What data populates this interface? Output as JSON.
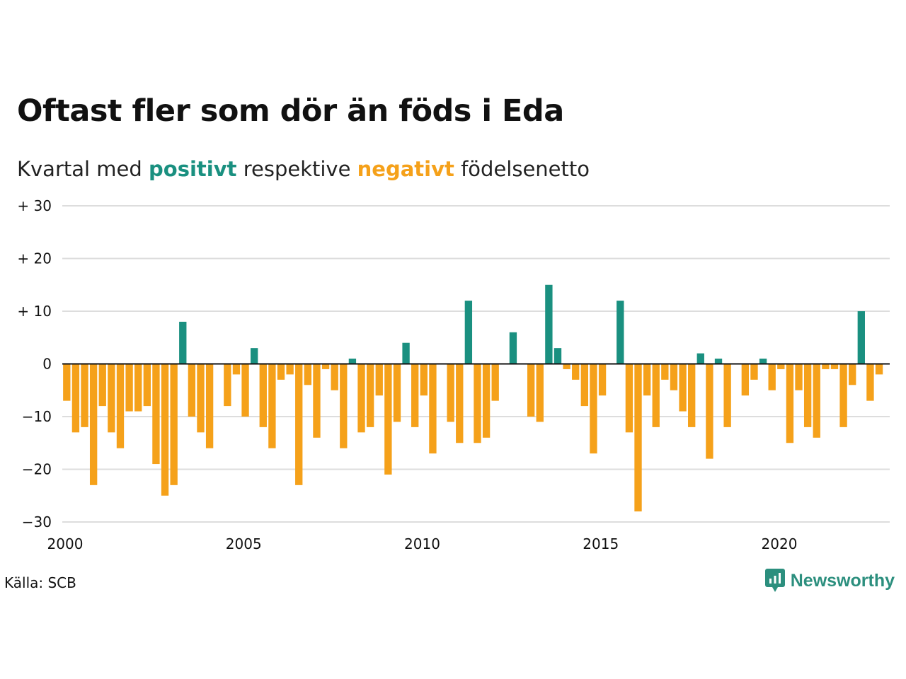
{
  "chart_data": {
    "type": "bar",
    "title": "Oftast fler som dör än föds i Eda",
    "subtitle": {
      "prefix": "Kvartal med ",
      "positive_word": "positivt",
      "middle": " respektive ",
      "negative_word": "negativt",
      "suffix": " födelsenetto"
    },
    "x_start": 2000,
    "x_end": 2023,
    "x_ticks": [
      {
        "year": 2000,
        "label": "2000"
      },
      {
        "year": 2005,
        "label": "2005"
      },
      {
        "year": 2010,
        "label": "2010"
      },
      {
        "year": 2015,
        "label": "2015"
      },
      {
        "year": 2020,
        "label": "2020"
      }
    ],
    "y_ticks": [
      {
        "value": 30,
        "label": "+ 30"
      },
      {
        "value": 20,
        "label": "+ 20"
      },
      {
        "value": 10,
        "label": "+ 10"
      },
      {
        "value": 0,
        "label": "0"
      },
      {
        "value": -10,
        "label": "−10"
      },
      {
        "value": -20,
        "label": "−20"
      },
      {
        "value": -30,
        "label": "−30"
      }
    ],
    "ylim": [
      -30,
      30
    ],
    "grid": true,
    "colors": {
      "positive": "#1a9080",
      "negative": "#f5a11a",
      "grid": "#dddddd",
      "zero_line": "#111111"
    },
    "values": [
      -7,
      -13,
      -12,
      -23,
      -8,
      -13,
      -16,
      -9,
      -9,
      -8,
      -19,
      -25,
      -23,
      8,
      -10,
      -13,
      -16,
      0,
      -8,
      -2,
      -10,
      3,
      -12,
      -16,
      -3,
      -2,
      -23,
      -4,
      -14,
      -1,
      -5,
      -16,
      1,
      -13,
      -12,
      -6,
      -21,
      -11,
      4,
      -12,
      -6,
      -17,
      0,
      -11,
      -15,
      12,
      -15,
      -14,
      -7,
      0,
      6,
      0,
      -10,
      -11,
      15,
      3,
      -1,
      -3,
      -8,
      -17,
      -6,
      0,
      12,
      -13,
      -28,
      -6,
      -12,
      -3,
      -5,
      -9,
      -12,
      2,
      -18,
      1,
      -12,
      0,
      -6,
      -3,
      1,
      -5,
      -1,
      -15,
      -5,
      -12,
      -14,
      -1,
      -1,
      -12,
      -4,
      10,
      -7,
      -2
    ]
  },
  "footer": {
    "source": "Källa: SCB",
    "brand": "Newsworthy",
    "brand_icon": "newsworthy-logo-icon",
    "brand_color": "#2c8f7e"
  }
}
